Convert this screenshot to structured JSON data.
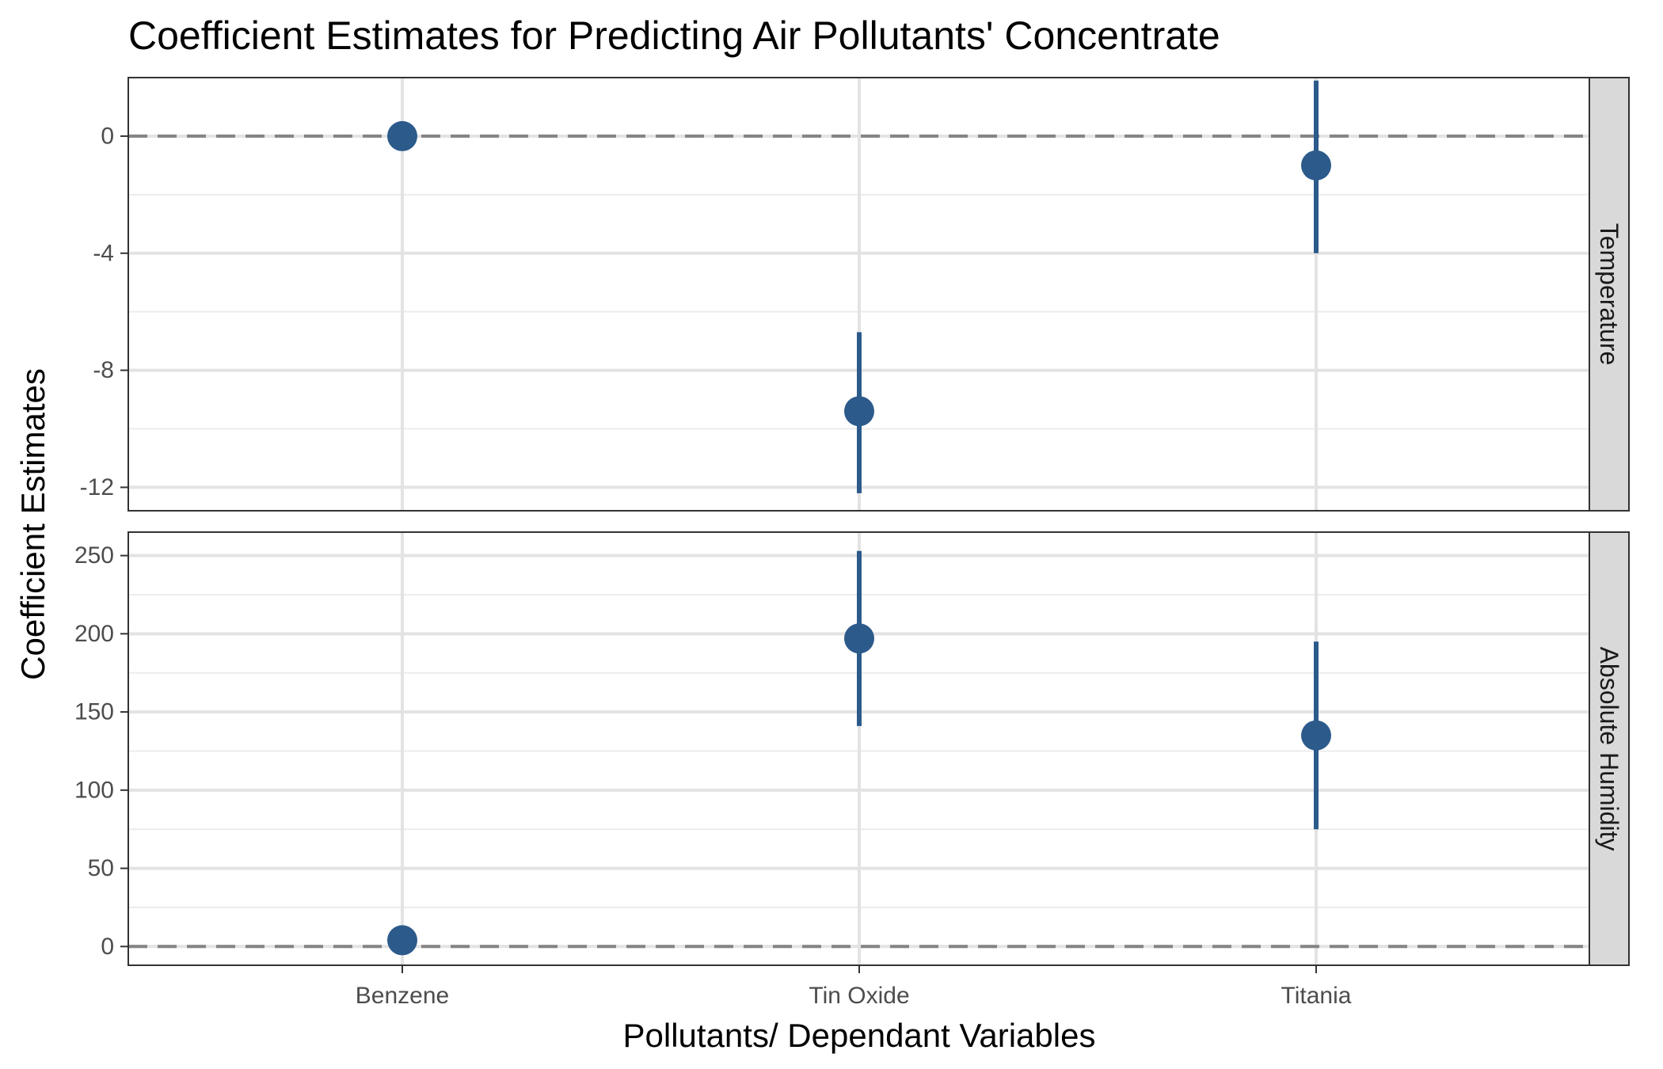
{
  "chart_data": {
    "type": "scatter",
    "title": "Coefficient Estimates for Predicting Air Pollutants' Concentrate",
    "xlabel": "Pollutants/ Dependant Variables",
    "ylabel": "Coefficient Estimates",
    "categories": [
      "Benzene",
      "Tin Oxide",
      "Titania"
    ],
    "point_color": "#2c5a8b",
    "reference_line": 0,
    "facets": [
      {
        "strip_label": "Temperature",
        "ylim": [
          -12.8,
          2.0
        ],
        "y_ticks": [
          0,
          -4,
          -8,
          -12
        ],
        "y_tick_labels": [
          "0",
          "-4",
          "-8",
          "-12"
        ],
        "points": [
          {
            "category": "Benzene",
            "estimate": 0.0,
            "lower": 0.0,
            "upper": 0.0
          },
          {
            "category": "Tin Oxide",
            "estimate": -9.4,
            "lower": -12.2,
            "upper": -6.7
          },
          {
            "category": "Titania",
            "estimate": -1.0,
            "lower": -4.0,
            "upper": 1.9
          }
        ]
      },
      {
        "strip_label": "Absolute Humidity",
        "ylim": [
          -12,
          265
        ],
        "y_ticks": [
          0,
          50,
          100,
          150,
          200,
          250
        ],
        "y_tick_labels": [
          "0",
          "50",
          "100",
          "150",
          "200",
          "250"
        ],
        "points": [
          {
            "category": "Benzene",
            "estimate": 4,
            "lower": 4,
            "upper": 4
          },
          {
            "category": "Tin Oxide",
            "estimate": 197,
            "lower": 141,
            "upper": 253
          },
          {
            "category": "Titania",
            "estimate": 135,
            "lower": 75,
            "upper": 195
          }
        ]
      }
    ]
  }
}
